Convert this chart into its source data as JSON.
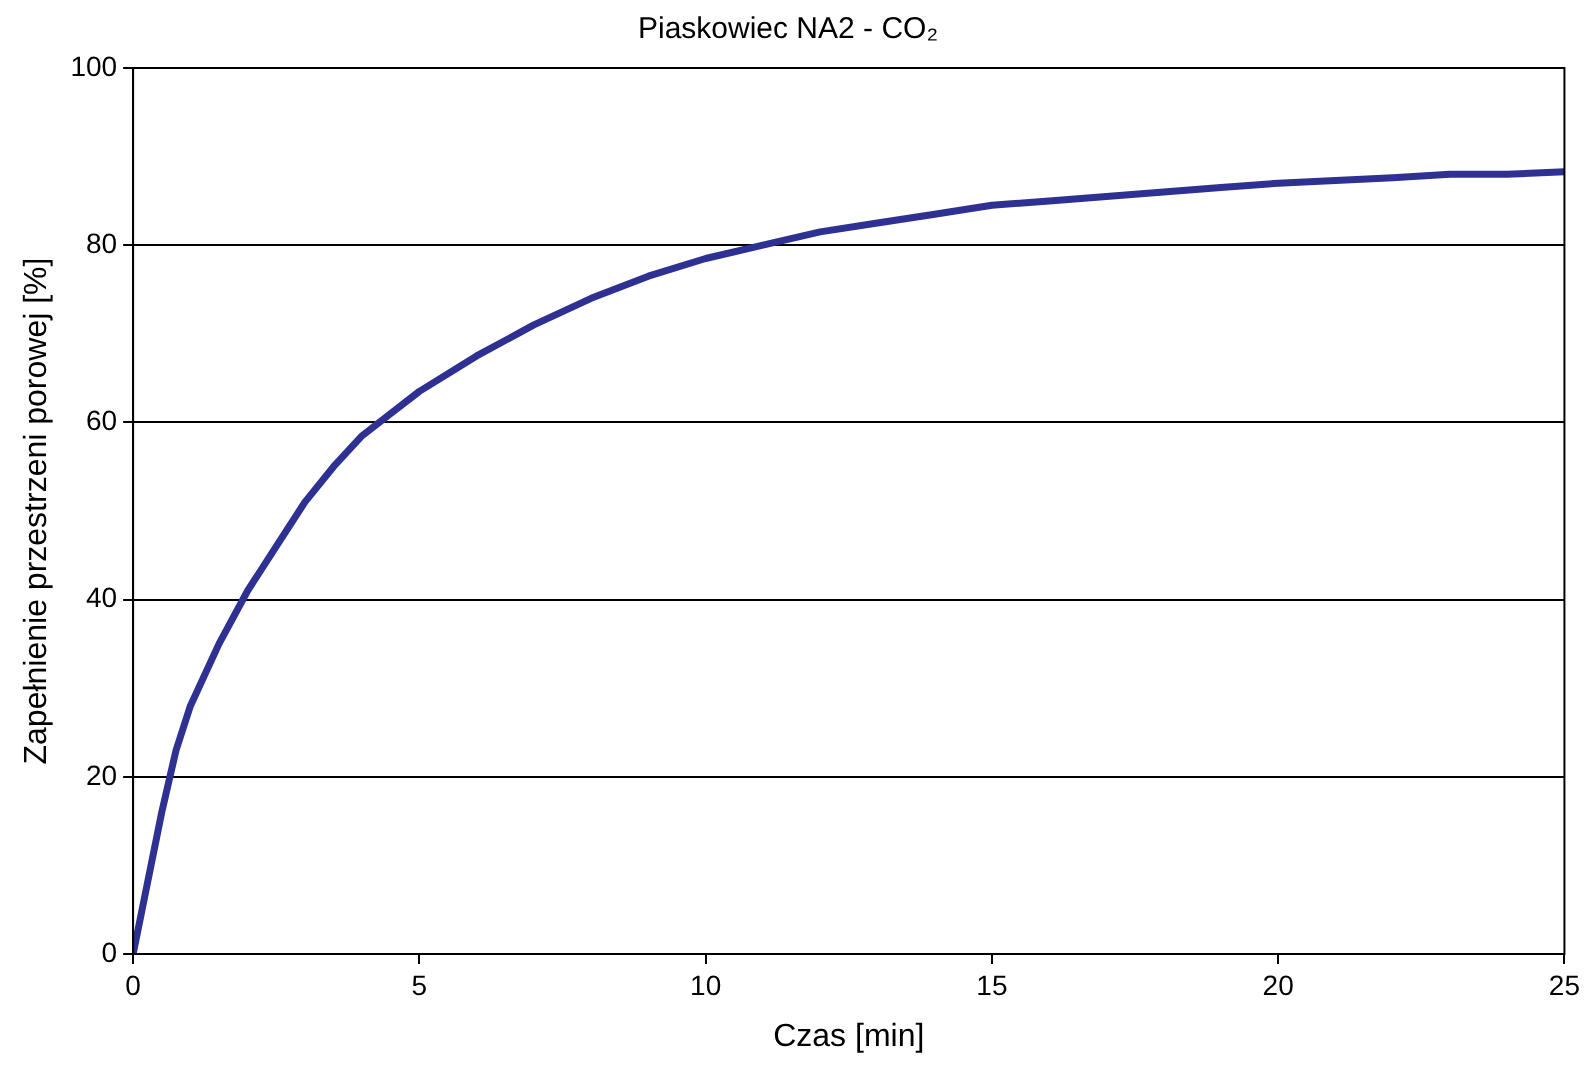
{
  "chart_data": {
    "type": "line",
    "title": "Piaskowiec NA2 - CO₂",
    "xlabel": "Czas [min]",
    "ylabel": "Zapełnienie przestrzeni porowej [%]",
    "x": [
      0,
      0.25,
      0.5,
      0.75,
      1,
      1.5,
      2,
      2.5,
      3,
      3.5,
      4,
      4.5,
      5,
      6,
      7,
      8,
      9,
      10,
      11,
      12,
      13,
      14,
      15,
      16,
      17,
      18,
      19,
      20,
      21,
      22,
      23,
      24,
      25
    ],
    "series": [
      {
        "color": "#2e3192",
        "values": [
          0,
          8,
          16,
          23,
          28,
          35,
          41,
          46,
          51,
          55,
          58.5,
          61,
          63.5,
          67.5,
          71,
          74,
          76.5,
          78.5,
          80,
          81.5,
          82.5,
          83.5,
          84.5,
          85,
          85.5,
          86,
          86.5,
          87,
          87.3,
          87.6,
          88,
          88,
          88.3
        ]
      }
    ],
    "xlim": [
      0,
      25
    ],
    "xticks": [
      0,
      5,
      10,
      15,
      20,
      25
    ],
    "ylim": [
      0,
      100
    ],
    "yticks": [
      0,
      20,
      40,
      60,
      80,
      100
    ],
    "grid": "y",
    "legend": false,
    "marker": "none",
    "line_style": "solid"
  }
}
